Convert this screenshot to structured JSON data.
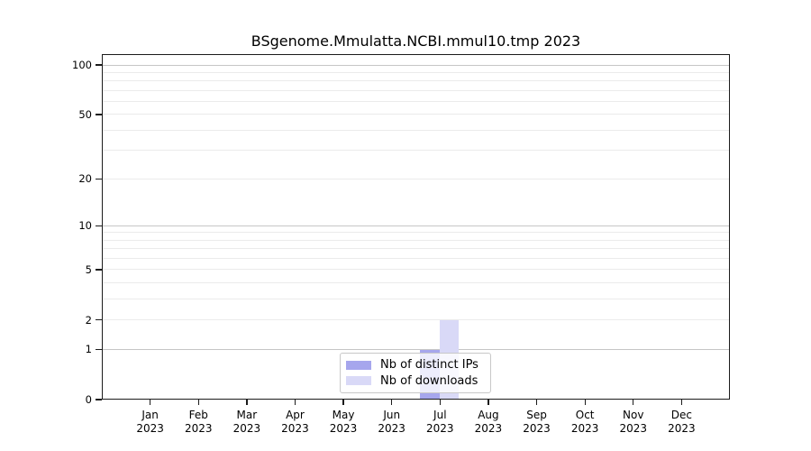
{
  "chart_data": {
    "type": "bar",
    "title": "BSgenome.Mmulatta.NCBI.mmul10.tmp 2023",
    "categories": [
      "Jan",
      "Feb",
      "Mar",
      "Apr",
      "May",
      "Jun",
      "Jul",
      "Aug",
      "Sep",
      "Oct",
      "Nov",
      "Dec"
    ],
    "year_label": "2023",
    "series": [
      {
        "name": "Nb of distinct IPs",
        "color": "#a6a6ed",
        "values": [
          0,
          0,
          0,
          0,
          0,
          0,
          1,
          0,
          0,
          0,
          0,
          0
        ]
      },
      {
        "name": "Nb of downloads",
        "color": "#d9d9f7",
        "values": [
          0,
          0,
          0,
          0,
          0,
          0,
          2,
          0,
          0,
          0,
          0,
          0
        ]
      }
    ],
    "y_ticks": [
      0,
      1,
      2,
      5,
      10,
      20,
      50,
      100
    ],
    "ylim": [
      0,
      100
    ],
    "y_scale": "log10(1+v)",
    "grid": {
      "major": [
        1,
        10,
        100
      ],
      "minor": [
        2,
        3,
        4,
        5,
        6,
        7,
        8,
        9,
        20,
        30,
        40,
        50,
        60,
        70,
        80,
        90
      ]
    },
    "legend_position": "bottom-center",
    "colors": {
      "major_grid": "#c6c6c6",
      "minor_grid": "#ebebeb",
      "spine": "#1b1b1b"
    }
  }
}
